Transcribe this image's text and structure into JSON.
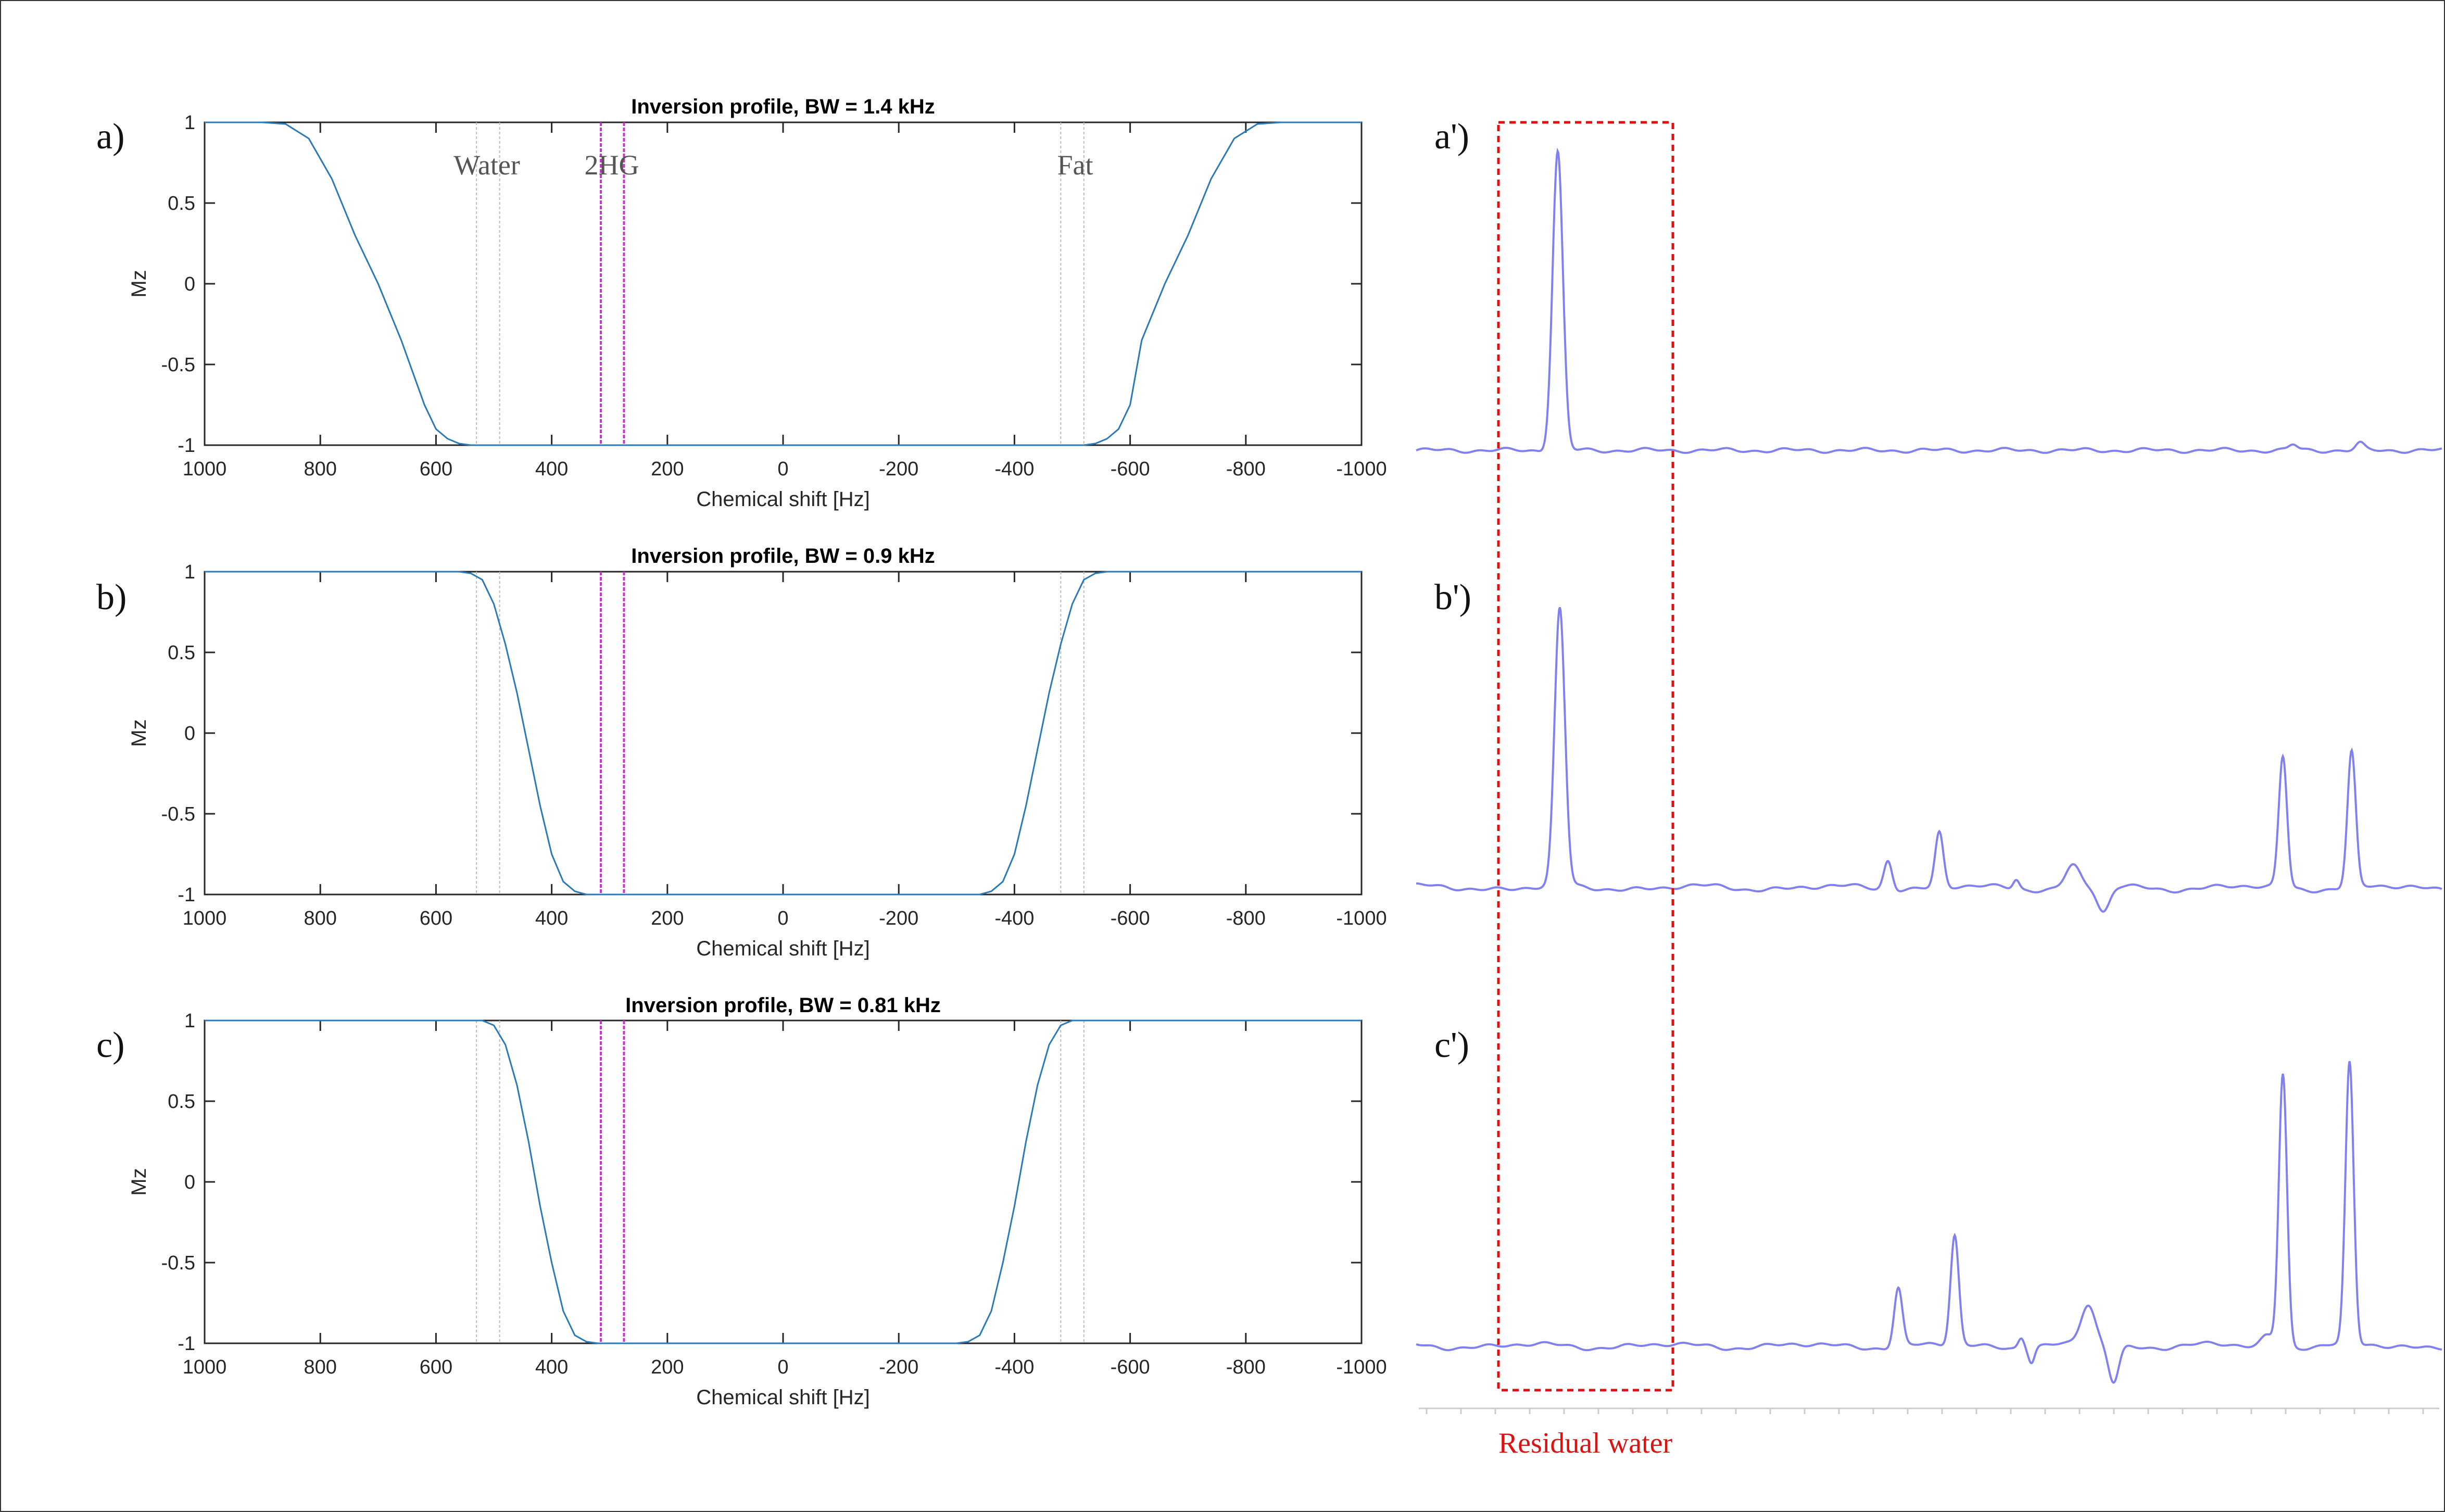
{
  "colors": {
    "profile_line": "#2a7ab8",
    "metabolite_band": "#cc33cc",
    "guide_line": "#bbbbbb",
    "spectrum_line": "#8080f0",
    "residual_box": "#dd1111",
    "label_gray": "#555555"
  },
  "panel_labels": [
    "a)",
    "b)",
    "c)"
  ],
  "spectrum_labels": [
    "a')",
    "b')",
    "c')"
  ],
  "region_labels": {
    "water": "Water",
    "hg": "2HG",
    "fat": "Fat"
  },
  "residual_label": "Residual water",
  "chart_data": [
    {
      "type": "line",
      "title": "Inversion profile, BW = 1.4 kHz",
      "xlabel": "Chemical shift [Hz]",
      "ylabel": "Mz",
      "xlim": [
        1000,
        -1000
      ],
      "ylim": [
        -1,
        1
      ],
      "xticks": [
        "1000",
        "800",
        "600",
        "400",
        "200",
        "0",
        "-200",
        "-400",
        "-600",
        "-800",
        "-1000"
      ],
      "yticks": [
        "1",
        "0.5",
        "0",
        "-0.5",
        "-1"
      ],
      "guide_lines_hz": [
        530,
        490,
        -480,
        -520
      ],
      "band_lines_hz": [
        315,
        275
      ],
      "series": [
        {
          "x": [
            1000,
            900,
            860,
            820,
            780,
            740,
            700,
            660,
            620,
            600,
            580,
            560,
            540,
            520,
            500,
            400,
            0,
            -400,
            -500,
            -520,
            -540,
            -560,
            -580,
            -600,
            -620,
            -660,
            -700,
            -740,
            -780,
            -820,
            -860,
            -900,
            -1000
          ],
          "y": [
            1,
            1,
            0.99,
            0.9,
            0.65,
            0.3,
            0.0,
            -0.35,
            -0.75,
            -0.9,
            -0.96,
            -0.99,
            -1,
            -1,
            -1,
            -1,
            -1,
            -1,
            -1,
            -1,
            -0.99,
            -0.96,
            -0.9,
            -0.75,
            -0.35,
            0.0,
            0.3,
            0.65,
            0.9,
            0.99,
            1,
            1,
            1
          ]
        }
      ]
    },
    {
      "type": "line",
      "title": "Inversion profile, BW = 0.9 kHz",
      "xlabel": "Chemical shift [Hz]",
      "ylabel": "Mz",
      "xlim": [
        1000,
        -1000
      ],
      "ylim": [
        -1,
        1
      ],
      "xticks": [
        "1000",
        "800",
        "600",
        "400",
        "200",
        "0",
        "-200",
        "-400",
        "-600",
        "-800",
        "-1000"
      ],
      "yticks": [
        "1",
        "0.5",
        "0",
        "-0.5",
        "-1"
      ],
      "guide_lines_hz": [
        530,
        490,
        -480,
        -520
      ],
      "band_lines_hz": [
        315,
        275
      ],
      "series": [
        {
          "x": [
            1000,
            560,
            540,
            520,
            500,
            480,
            460,
            440,
            420,
            400,
            380,
            360,
            340,
            320,
            300,
            0,
            -300,
            -320,
            -340,
            -360,
            -380,
            -400,
            -420,
            -440,
            -460,
            -480,
            -500,
            -520,
            -540,
            -560,
            -1000
          ],
          "y": [
            1,
            1,
            0.99,
            0.95,
            0.8,
            0.55,
            0.25,
            -0.1,
            -0.45,
            -0.75,
            -0.92,
            -0.98,
            -1,
            -1,
            -1,
            -1,
            -1,
            -1,
            -1,
            -0.98,
            -0.92,
            -0.75,
            -0.45,
            -0.1,
            0.25,
            0.55,
            0.8,
            0.95,
            0.99,
            1,
            1
          ]
        }
      ]
    },
    {
      "type": "line",
      "title": "Inversion profile, BW = 0.81 kHz",
      "xlabel": "Chemical shift [Hz]",
      "ylabel": "Mz",
      "xlim": [
        1000,
        -1000
      ],
      "ylim": [
        -1,
        1
      ],
      "xticks": [
        "1000",
        "800",
        "600",
        "400",
        "200",
        "0",
        "-200",
        "-400",
        "-600",
        "-800",
        "-1000"
      ],
      "yticks": [
        "1",
        "0.5",
        "0",
        "-0.5",
        "-1"
      ],
      "guide_lines_hz": [
        530,
        490,
        -480,
        -520
      ],
      "band_lines_hz": [
        315,
        275
      ],
      "series": [
        {
          "x": [
            1000,
            520,
            500,
            480,
            460,
            440,
            420,
            400,
            380,
            360,
            340,
            320,
            300,
            0,
            -300,
            -320,
            -340,
            -360,
            -380,
            -400,
            -420,
            -440,
            -460,
            -480,
            -500,
            -520,
            -1000
          ],
          "y": [
            1,
            1,
            0.97,
            0.85,
            0.6,
            0.25,
            -0.15,
            -0.5,
            -0.8,
            -0.95,
            -0.99,
            -1,
            -1,
            -1,
            -1,
            -0.99,
            -0.95,
            -0.8,
            -0.5,
            -0.15,
            0.25,
            0.6,
            0.85,
            0.97,
            1,
            1,
            1
          ]
        }
      ]
    }
  ],
  "spectra": [
    {
      "peaks": [
        {
          "pos": 0.138,
          "height": 0.82,
          "width": 0.005
        },
        {
          "pos": 0.855,
          "height": 0.015,
          "width": 0.004
        },
        {
          "pos": 0.92,
          "height": 0.018,
          "width": 0.004
        }
      ]
    },
    {
      "peaks": [
        {
          "pos": 0.14,
          "height": 0.76,
          "width": 0.005
        },
        {
          "pos": 0.46,
          "height": 0.08,
          "width": 0.004
        },
        {
          "pos": 0.51,
          "height": 0.15,
          "width": 0.004
        },
        {
          "pos": 0.585,
          "height": 0.025,
          "width": 0.003
        },
        {
          "pos": 0.64,
          "height": 0.06,
          "width": 0.007
        },
        {
          "pos": 0.67,
          "height": -0.07,
          "width": 0.006
        },
        {
          "pos": 0.845,
          "height": 0.36,
          "width": 0.004
        },
        {
          "pos": 0.912,
          "height": 0.37,
          "width": 0.004
        }
      ]
    },
    {
      "peaks": [
        {
          "pos": 0.47,
          "height": 0.16,
          "width": 0.004
        },
        {
          "pos": 0.525,
          "height": 0.3,
          "width": 0.004
        },
        {
          "pos": 0.59,
          "height": 0.03,
          "width": 0.003
        },
        {
          "pos": 0.6,
          "height": -0.04,
          "width": 0.003
        },
        {
          "pos": 0.655,
          "height": 0.11,
          "width": 0.007
        },
        {
          "pos": 0.68,
          "height": -0.1,
          "width": 0.005
        },
        {
          "pos": 0.83,
          "height": 0.03,
          "width": 0.006
        },
        {
          "pos": 0.845,
          "height": 0.75,
          "width": 0.004
        },
        {
          "pos": 0.91,
          "height": 0.77,
          "width": 0.004
        }
      ]
    }
  ]
}
